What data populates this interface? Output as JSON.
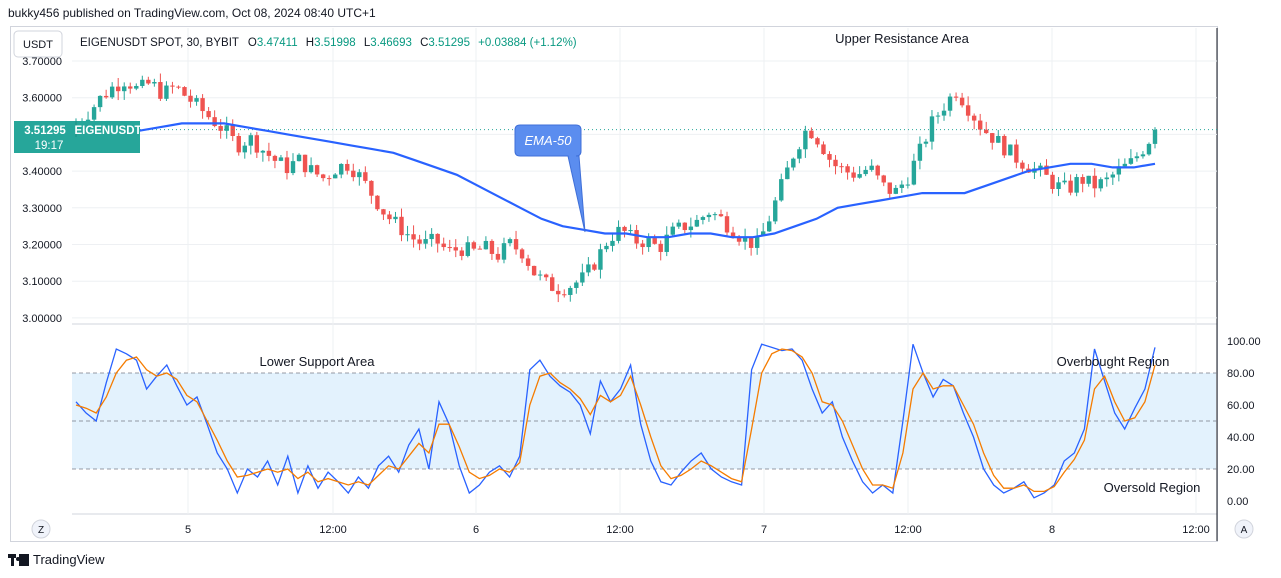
{
  "header": {
    "published_by": "bukky456 published on TradingView.com, Oct 08, 2024 08:40 UTC+1"
  },
  "currency_label": "USDT",
  "legend": {
    "symbol": "EIGENUSDT SPOT, 30, BYBIT",
    "open_label": "O",
    "open": "3.47411",
    "high_label": "H",
    "high": "3.51998",
    "low_label": "L",
    "low": "3.46693",
    "close_label": "C",
    "close": "3.51295",
    "change": "+0.03884 (+1.12%)"
  },
  "price_tag": {
    "price": "3.51295",
    "symbol": "EIGENUSDT",
    "countdown": "19:17"
  },
  "annotations": {
    "upper_resistance": "Upper Resistance Area",
    "ema": "EMA-50",
    "lower_support": "Lower Support Area",
    "overbought": "Overbought Region",
    "oversold": "Oversold Region"
  },
  "footer": {
    "brand": "TradingView",
    "z_button": "Z",
    "a_button": "A"
  },
  "colors": {
    "up": "#26a69a",
    "down": "#ef5350",
    "ema": "#2962ff",
    "ema_callout": "#5b8def",
    "stoch_k": "#2962ff",
    "stoch_d": "#f57c00",
    "band": "#e3f2fd",
    "grid": "#eef0f3"
  },
  "chart_data": [
    {
      "type": "candlestick",
      "title": "EIGENUSDT SPOT, 30, BYBIT",
      "price_axis": [
        "3.70000",
        "3.60000",
        "3.50000",
        "3.40000",
        "3.30000",
        "3.20000",
        "3.10000",
        "3.00000"
      ],
      "ylim": [
        2.99,
        3.72
      ],
      "time_axis": [
        "5",
        "12:00",
        "6",
        "12:00",
        "7",
        "12:00",
        "8",
        "12:00"
      ],
      "last_price": 3.51295,
      "close_series": [
        3.53,
        3.56,
        3.6,
        3.63,
        3.65,
        3.62,
        3.64,
        3.61,
        3.63,
        3.6,
        3.57,
        3.54,
        3.51,
        3.47,
        3.49,
        3.46,
        3.43,
        3.41,
        3.43,
        3.4,
        3.38,
        3.41,
        3.42,
        3.38,
        3.33,
        3.28,
        3.25,
        3.22,
        3.2,
        3.21,
        3.18,
        3.19,
        3.18,
        3.19,
        3.17,
        3.2,
        3.18,
        3.12,
        3.09,
        3.08,
        3.09,
        3.11,
        3.16,
        3.22,
        3.24,
        3.21,
        3.21,
        3.19,
        3.23,
        3.25,
        3.26,
        3.29,
        3.27,
        3.24,
        3.21,
        3.2,
        3.28,
        3.37,
        3.46,
        3.52,
        3.48,
        3.42,
        3.4,
        3.39,
        3.41,
        3.36,
        3.34,
        3.38,
        3.45,
        3.53,
        3.58,
        3.62,
        3.57,
        3.52,
        3.49,
        3.46,
        3.43,
        3.41,
        3.39,
        3.36,
        3.35,
        3.38,
        3.36,
        3.37,
        3.4,
        3.42,
        3.46,
        3.51
      ],
      "ema_50": [
        3.49,
        3.5,
        3.51,
        3.51,
        3.52,
        3.53,
        3.53,
        3.53,
        3.52,
        3.51,
        3.5,
        3.49,
        3.48,
        3.47,
        3.46,
        3.45,
        3.43,
        3.41,
        3.39,
        3.36,
        3.33,
        3.3,
        3.27,
        3.25,
        3.24,
        3.23,
        3.23,
        3.22,
        3.22,
        3.23,
        3.23,
        3.22,
        3.22,
        3.23,
        3.25,
        3.27,
        3.3,
        3.31,
        3.32,
        3.33,
        3.34,
        3.34,
        3.34,
        3.36,
        3.38,
        3.4,
        3.41,
        3.42,
        3.42,
        3.41,
        3.41,
        3.42
      ]
    },
    {
      "type": "line",
      "title": "",
      "y_axis": [
        "100.00",
        "80.00",
        "60.00",
        "40.00",
        "20.00",
        "0.00"
      ],
      "ylim": [
        -5,
        106
      ],
      "bands": {
        "upper": 80,
        "middle": 50,
        "lower": 20
      },
      "series": [
        {
          "color": "#2962ff",
          "values": [
            62,
            55,
            50,
            74,
            95,
            92,
            88,
            70,
            78,
            85,
            72,
            60,
            65,
            48,
            30,
            20,
            5,
            20,
            15,
            25,
            10,
            28,
            5,
            22,
            8,
            18,
            12,
            5,
            15,
            8,
            22,
            28,
            18,
            35,
            45,
            20,
            62,
            48,
            22,
            5,
            10,
            18,
            22,
            15,
            28,
            82,
            88,
            78,
            72,
            68,
            60,
            42,
            75,
            62,
            70,
            85,
            48,
            25,
            12,
            10,
            18,
            25,
            30,
            20,
            15,
            12,
            10,
            82,
            98,
            96,
            94,
            95,
            88,
            70,
            55,
            62,
            40,
            25,
            12,
            5,
            10,
            5,
            50,
            98,
            80,
            65,
            76,
            72,
            55,
            40,
            20,
            10,
            5,
            8,
            12,
            2,
            5,
            10,
            25,
            30,
            45,
            95,
            75,
            55,
            45,
            58,
            70,
            96
          ]
        },
        {
          "color": "#f57c00",
          "values": [
            60,
            58,
            55,
            65,
            80,
            88,
            90,
            82,
            78,
            80,
            76,
            66,
            62,
            50,
            38,
            25,
            15,
            16,
            18,
            20,
            18,
            20,
            14,
            18,
            12,
            14,
            12,
            10,
            12,
            10,
            16,
            22,
            20,
            28,
            36,
            30,
            48,
            48,
            34,
            18,
            14,
            16,
            20,
            18,
            24,
            60,
            78,
            80,
            74,
            70,
            64,
            54,
            66,
            62,
            66,
            78,
            60,
            40,
            22,
            14,
            16,
            20,
            25,
            22,
            18,
            14,
            12,
            45,
            80,
            92,
            95,
            94,
            90,
            80,
            62,
            60,
            50,
            35,
            20,
            10,
            10,
            8,
            30,
            70,
            80,
            70,
            72,
            72,
            60,
            48,
            30,
            16,
            8,
            8,
            10,
            6,
            6,
            9,
            18,
            26,
            38,
            70,
            78,
            62,
            50,
            52,
            62,
            85
          ]
        }
      ]
    }
  ]
}
